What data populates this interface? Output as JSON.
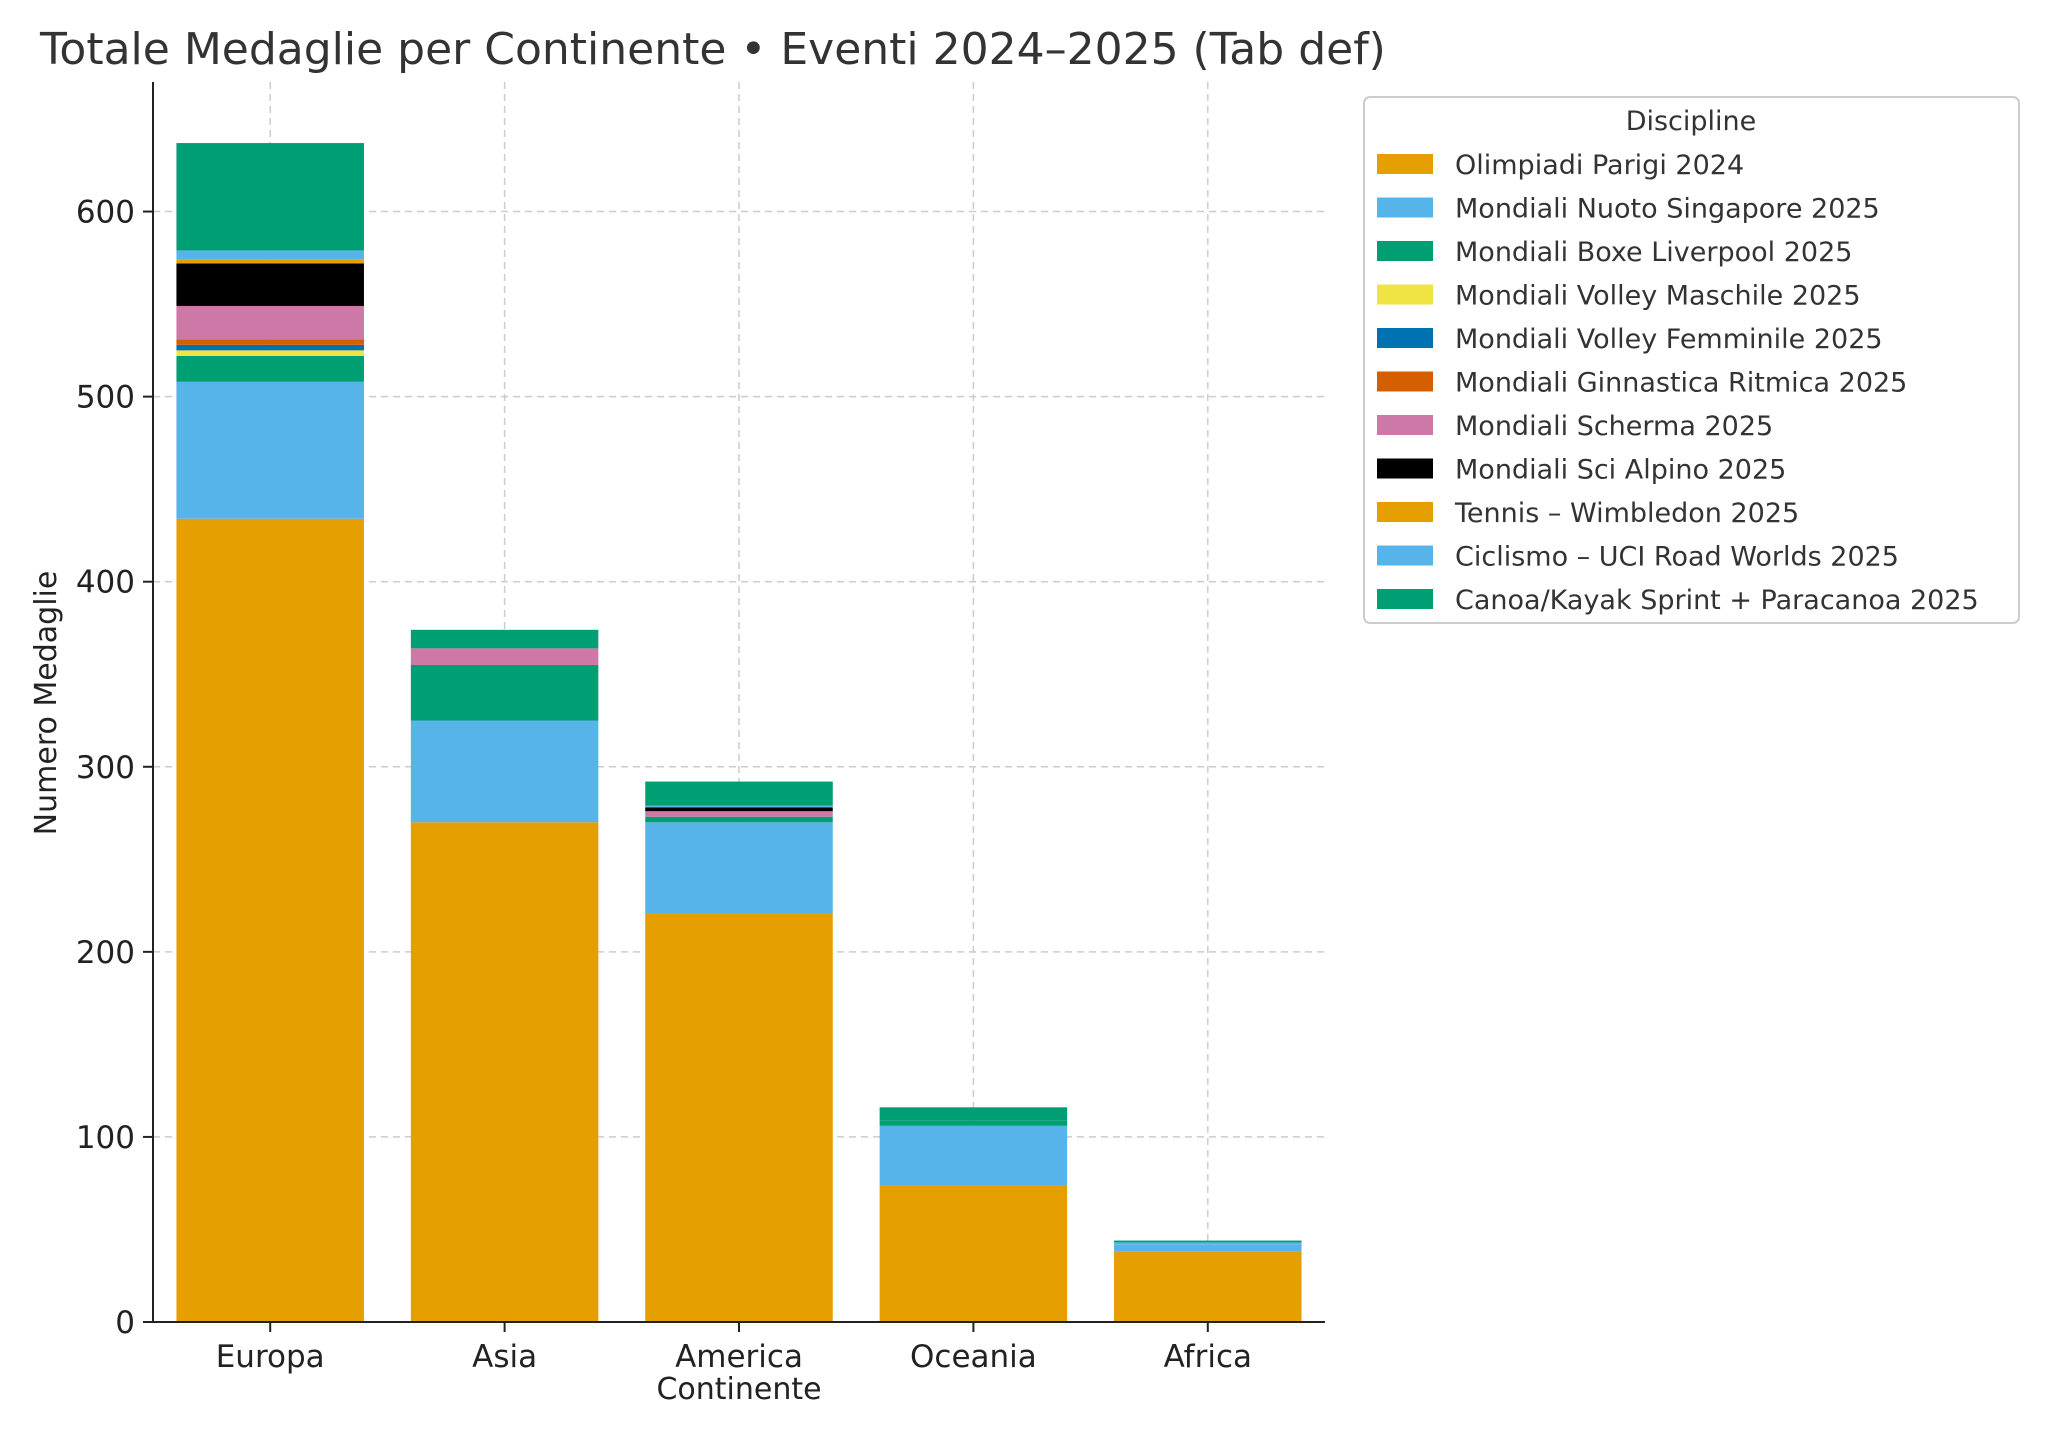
{
  "chart_data": {
    "type": "bar",
    "stacked": true,
    "title": "Totale Medaglie per Continente • Eventi 2024–2025 (Tab def)",
    "xlabel": "Continente",
    "ylabel": "Numero Medaglie",
    "ylim": [
      0,
      670
    ],
    "yticks": [
      0,
      100,
      200,
      300,
      400,
      500,
      600
    ],
    "grid": true,
    "legend": {
      "title": "Discipline",
      "placement": "upper-right-outside"
    },
    "categories": [
      "Europa",
      "Asia",
      "America",
      "Oceania",
      "Africa"
    ],
    "series": [
      {
        "name": "Olimpiadi Parigi 2024",
        "color": "#E69F00",
        "values": [
          434,
          270,
          221,
          74,
          38
        ]
      },
      {
        "name": "Mondiali Nuoto Singapore 2025",
        "color": "#56B4E9",
        "values": [
          74,
          55,
          49,
          32,
          4
        ]
      },
      {
        "name": "Mondiali Boxe Liverpool 2025",
        "color": "#009E73",
        "values": [
          14,
          30,
          3,
          3,
          0
        ]
      },
      {
        "name": "Mondiali Volley Maschile 2025",
        "color": "#F0E442",
        "values": [
          3,
          0,
          0,
          0,
          0
        ]
      },
      {
        "name": "Mondiali Volley Femminile 2025",
        "color": "#0072B2",
        "values": [
          3,
          0,
          0,
          0,
          0
        ]
      },
      {
        "name": "Mondiali Ginnastica Ritmica 2025",
        "color": "#D55E00",
        "values": [
          3,
          0,
          0,
          0,
          0
        ]
      },
      {
        "name": "Mondiali Scherma 2025",
        "color": "#CC79A7",
        "values": [
          18,
          9,
          3,
          0,
          0
        ]
      },
      {
        "name": "Mondiali Sci Alpino 2025",
        "color": "#000000",
        "values": [
          23,
          0,
          2,
          0,
          0
        ]
      },
      {
        "name": "Tennis – Wimbledon 2025",
        "color": "#E69F00",
        "values": [
          2,
          0,
          0,
          0,
          0
        ]
      },
      {
        "name": "Ciclismo – UCI Road Worlds 2025",
        "color": "#56B4E9",
        "values": [
          5,
          0,
          1,
          0,
          1
        ]
      },
      {
        "name": "Canoa/Kayak Sprint + Paracanoa 2025",
        "color": "#009E73",
        "values": [
          58,
          10,
          13,
          7,
          1
        ]
      }
    ]
  }
}
